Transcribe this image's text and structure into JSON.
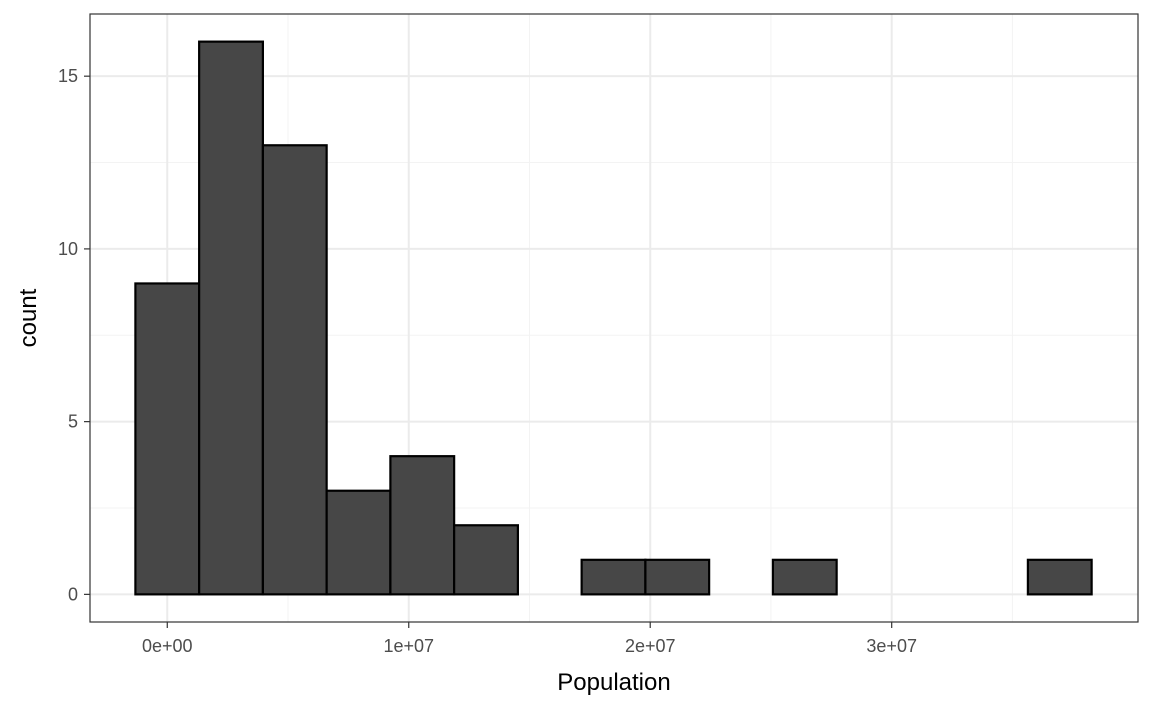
{
  "chart_data": {
    "type": "bar",
    "subtype": "histogram",
    "title": "",
    "xlabel": "Population",
    "ylabel": "count",
    "bin_width": 2640000,
    "bins": [
      {
        "start": -1320000,
        "end": 1320000,
        "count": 9
      },
      {
        "start": 1320000,
        "end": 3960000,
        "count": 16
      },
      {
        "start": 3960000,
        "end": 6600000,
        "count": 13
      },
      {
        "start": 6600000,
        "end": 9240000,
        "count": 3
      },
      {
        "start": 9240000,
        "end": 11880000,
        "count": 4
      },
      {
        "start": 11880000,
        "end": 14520000,
        "count": 2
      },
      {
        "start": 14520000,
        "end": 17160000,
        "count": 0
      },
      {
        "start": 17160000,
        "end": 19800000,
        "count": 1
      },
      {
        "start": 19800000,
        "end": 22440000,
        "count": 1
      },
      {
        "start": 22440000,
        "end": 25080000,
        "count": 0
      },
      {
        "start": 25080000,
        "end": 27720000,
        "count": 1
      },
      {
        "start": 27720000,
        "end": 30360000,
        "count": 0
      },
      {
        "start": 30360000,
        "end": 33000000,
        "count": 0
      },
      {
        "start": 33000000,
        "end": 35640000,
        "count": 0
      },
      {
        "start": 35640000,
        "end": 38280000,
        "count": 1
      }
    ],
    "xlim": [
      -3200000,
      40200000
    ],
    "ylim": [
      -0.8,
      16.8
    ],
    "x_ticks": [
      {
        "value": 0,
        "label": "0e+00"
      },
      {
        "value": 10000000,
        "label": "1e+07"
      },
      {
        "value": 20000000,
        "label": "2e+07"
      },
      {
        "value": 30000000,
        "label": "3e+07"
      }
    ],
    "x_minor_ticks": [
      5000000,
      15000000,
      25000000,
      35000000
    ],
    "y_ticks": [
      {
        "value": 0,
        "label": "0"
      },
      {
        "value": 5,
        "label": "5"
      },
      {
        "value": 10,
        "label": "10"
      },
      {
        "value": 15,
        "label": "15"
      }
    ],
    "y_minor_ticks": [
      2.5,
      7.5,
      12.5
    ],
    "grid": true,
    "legend": "none",
    "bar_fill": "#474747",
    "bar_outline": "#000000",
    "grid_major_color": "#ebebeb",
    "grid_minor_color": "#f3f3f3",
    "panel_border_color": "#333333",
    "theme": "bw"
  }
}
